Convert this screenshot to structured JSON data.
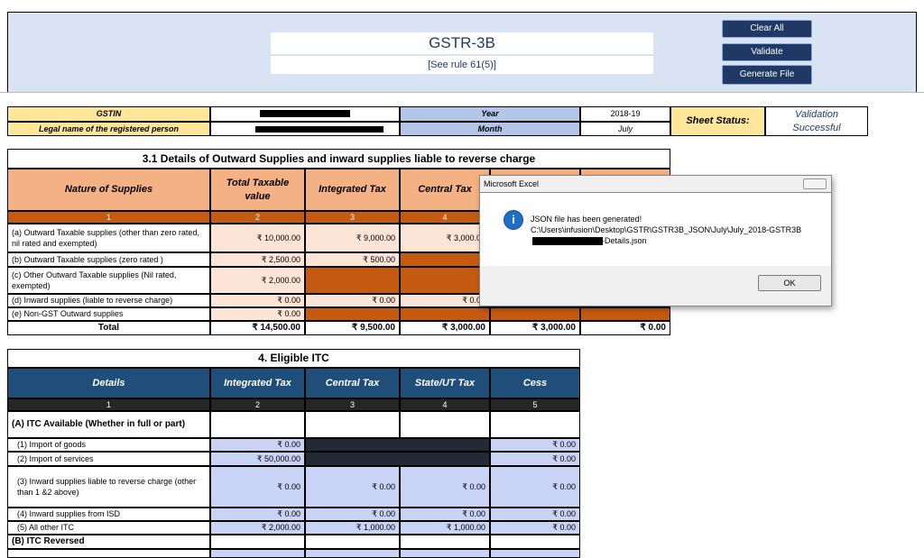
{
  "header": {
    "title": "GSTR-3B",
    "subtitle": "[See rule 61(5)]"
  },
  "buttons": [
    "Clear All",
    "Validate",
    "Generate File"
  ],
  "info": {
    "gstin_label": "GSTIN",
    "legal_name_label": "Legal name of the registered person",
    "year_label": "Year",
    "year": "2018-19",
    "month_label": "Month",
    "month": "July",
    "status_label": "Sheet Status:",
    "status": "Validation Successful"
  },
  "table_3_1": {
    "title": "3.1 Details of Outward Supplies and inward supplies liable to reverse charge",
    "headers": [
      "Nature of Supplies",
      "Total Taxable value",
      "Integrated Tax",
      "Central Tax"
    ],
    "column_numbers": [
      "1",
      "2",
      "3",
      "4"
    ],
    "rows": [
      {
        "label": "(a) Outward Taxable  supplies  (other than zero rated, nil rated and exempted)",
        "values": [
          "₹ 10,000.00",
          "₹ 9,000.00",
          "₹ 3,000.00"
        ]
      },
      {
        "label": "(b) Outward Taxable  supplies  (zero rated )",
        "values": [
          "₹ 2,500.00",
          "₹ 500.00"
        ]
      },
      {
        "label": "(c) Other Outward Taxable  supplies (Nil rated, exempted)",
        "values": [
          "₹ 2,000.00"
        ]
      },
      {
        "label": "(d) Inward supplies (liable to reverse charge)",
        "values": [
          "₹ 0.00",
          "₹ 0.00",
          "₹ 0.00"
        ]
      },
      {
        "label": "(e) Non-GST Outward supplies",
        "values": [
          "₹ 0.00"
        ]
      }
    ],
    "total": {
      "label": "Total",
      "values": [
        "₹ 14,500.00",
        "₹ 9,500.00",
        "₹ 3,000.00",
        "₹ 3,000.00",
        "₹ 0.00"
      ]
    }
  },
  "dialog": {
    "title": "Microsoft Excel",
    "message": "JSON file has been generated!",
    "path": "C:\\Users\\infusion\\Desktop\\GSTR\\GSTR3B_JSON\\July\\July_2018-GSTR3B",
    "path_end": "-Details.json",
    "button": "OK"
  },
  "table_4": {
    "title": "4. Eligible ITC",
    "headers": [
      "Details",
      "Integrated Tax",
      "Central Tax",
      "State/UT Tax",
      "Cess"
    ],
    "column_numbers": [
      "1",
      "2",
      "3",
      "4",
      "5"
    ],
    "rows": [
      {
        "label": "(A) ITC Available (Whether in full or part)"
      },
      {
        "label": "(1)   Import of goods",
        "values": [
          "₹ 0.00",
          "₹ 0.00"
        ]
      },
      {
        "label": "(2)   Import of services",
        "values": [
          "₹ 50,000.00",
          "₹ 0.00"
        ]
      },
      {
        "label": "(3)   Inward supplies liable to reverse charge (other than 1 &2 above)",
        "values": [
          "₹ 0.00",
          "₹ 0.00",
          "₹ 0.00",
          "₹ 0.00"
        ]
      },
      {
        "label": "(4)   Inward supplies from ISD",
        "values": [
          "₹ 0.00",
          "₹ 0.00",
          "₹ 0.00",
          "₹ 0.00"
        ]
      },
      {
        "label": "(5)   All other ITC",
        "values": [
          "₹ 2,000.00",
          "₹ 1,000.00",
          "₹ 1,000.00",
          "₹ 0.00"
        ]
      },
      {
        "label": "(B) ITC Reversed"
      }
    ]
  }
}
